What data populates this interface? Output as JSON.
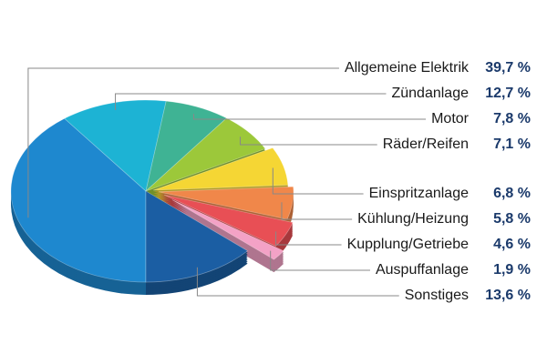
{
  "chart_data": {
    "type": "pie",
    "categories": [
      "Allgemeine Elektrik",
      "Zündanlage",
      "Motor",
      "Räder/Reifen",
      "Einspritzanlage",
      "Kühlung/Heizung",
      "Kupplung/Getriebe",
      "Auspuffanlage",
      "Sonstiges"
    ],
    "values": [
      39.7,
      12.7,
      7.8,
      7.1,
      6.8,
      5.8,
      4.6,
      1.9,
      13.6
    ],
    "value_labels": [
      "39,7 %",
      "12,7 %",
      "7,8 %",
      "7,1 %",
      "6,8 %",
      "5,8 %",
      "4,6 %",
      "1,9 %",
      "13,6 %"
    ],
    "colors": [
      "#1e88cf",
      "#1db3d4",
      "#3fb394",
      "#9cc83a",
      "#f5d634",
      "#f0874a",
      "#e84f55",
      "#f3a2c6",
      "#1b5ea3"
    ]
  }
}
